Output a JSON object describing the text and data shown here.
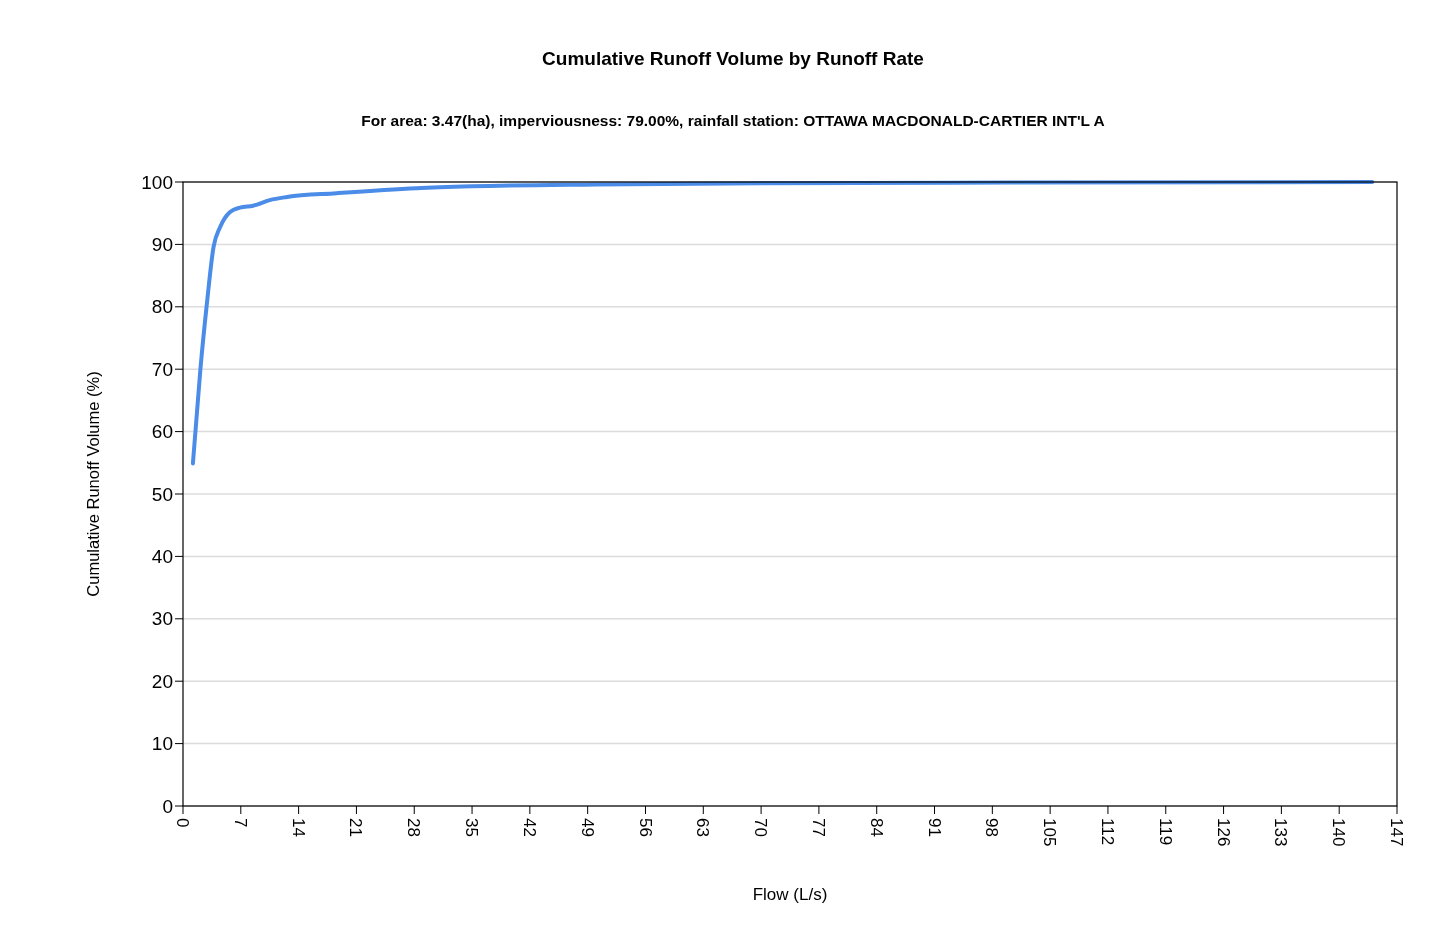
{
  "chart_data": {
    "type": "line",
    "title": "Cumulative Runoff Volume by Runoff Rate",
    "subtitle": "For area: 3.47(ha), imperviousness: 79.00%, rainfall station: OTTAWA MACDONALD-CARTIER INT'L A",
    "xlabel": "Flow (L/s)",
    "ylabel": "Cumulative Runoff Volume (%)",
    "x": [
      1.2,
      2.1,
      2.9,
      3.7,
      4.5,
      5.7,
      6.9,
      8.5,
      10.5,
      12.6,
      18.6,
      28.3,
      35,
      50,
      70,
      100,
      144
    ],
    "series": [
      {
        "color": "#4a8ce8",
        "values": [
          54.9,
          69.9,
          80.6,
          89.6,
          92.8,
          95.2,
          95.9,
          96.2,
          97.1,
          97.6,
          98.2,
          99.0,
          99.3,
          99.6,
          99.8,
          99.9,
          100
        ]
      }
    ],
    "xlim": [
      0,
      147
    ],
    "ylim": [
      0,
      100
    ],
    "xticks": [
      0,
      7,
      14,
      21,
      28,
      35,
      42,
      49,
      56,
      63,
      70,
      77,
      84,
      91,
      98,
      105,
      112,
      119,
      126,
      133,
      140,
      147
    ],
    "yticks": [
      0,
      10,
      20,
      30,
      40,
      50,
      60,
      70,
      80,
      90,
      100
    ],
    "grid": "y",
    "marker": "none",
    "line_style": "solid"
  }
}
